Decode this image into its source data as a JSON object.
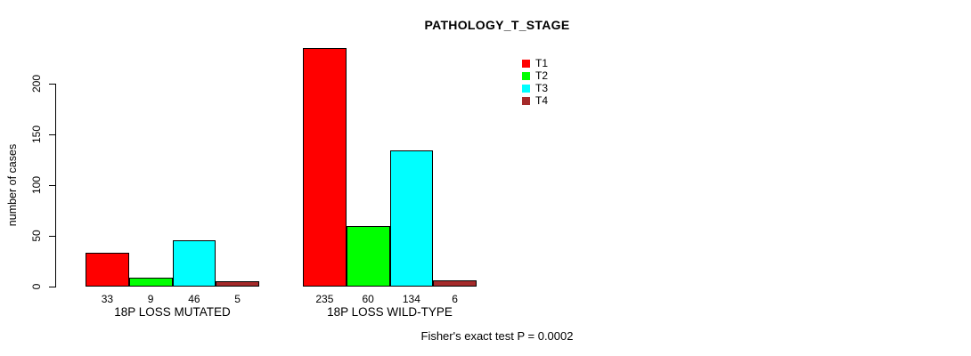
{
  "chart_data": {
    "type": "bar",
    "title": "PATHOLOGY_T_STAGE",
    "ylabel": "number of cases",
    "xlabel": "",
    "yticks": [
      0,
      50,
      100,
      150,
      200
    ],
    "ylim": [
      0,
      235
    ],
    "grid": false,
    "categories": [
      "18P LOSS MUTATED",
      "18P LOSS WILD-TYPE"
    ],
    "series": [
      {
        "name": "T1",
        "color": "#FF0000",
        "values": [
          33,
          235
        ]
      },
      {
        "name": "T2",
        "color": "#00FF00",
        "values": [
          9,
          60
        ]
      },
      {
        "name": "T3",
        "color": "#00FFFF",
        "values": [
          46,
          134
        ]
      },
      {
        "name": "T4",
        "color": "#A52A2A",
        "values": [
          5,
          6
        ]
      }
    ],
    "bar_value_labels": [
      [
        "33",
        "9",
        "46",
        "5"
      ],
      [
        "235",
        "60",
        "134",
        "6"
      ]
    ],
    "legend": {
      "position": "top-right",
      "entries": [
        "T1",
        "T2",
        "T3",
        "T4"
      ]
    },
    "footnote": "Fisher's exact test P = 0.0002"
  }
}
